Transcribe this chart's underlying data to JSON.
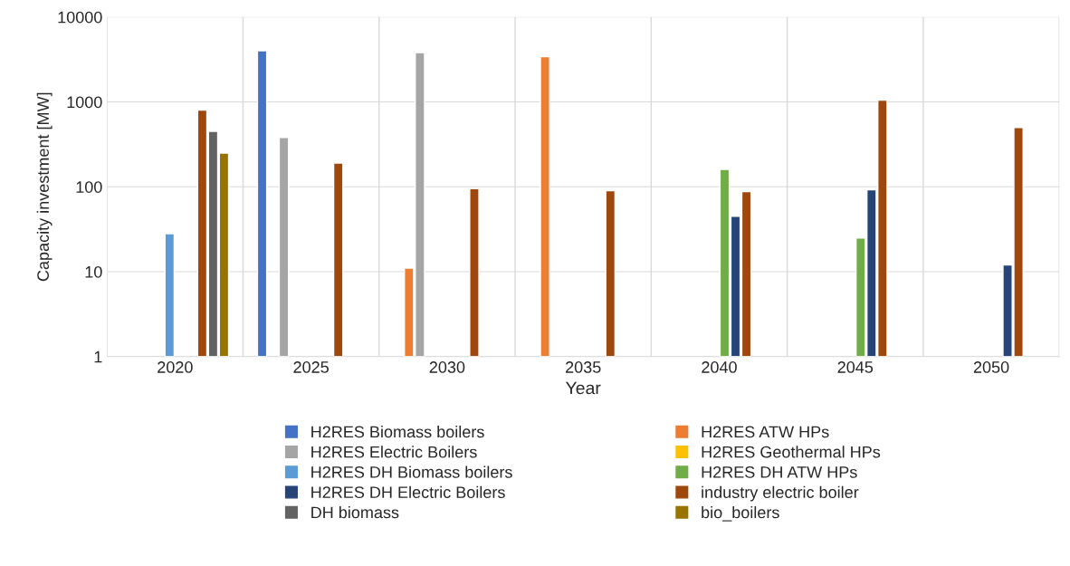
{
  "chart_data": {
    "type": "bar",
    "xlabel": "Year",
    "ylabel": "Capacity investment [MW]",
    "categories": [
      "2020",
      "2025",
      "2030",
      "2035",
      "2040",
      "2045",
      "2050"
    ],
    "log": true,
    "ylim": [
      1,
      10000
    ],
    "yticks": [
      1,
      10,
      100,
      1000,
      10000
    ],
    "grid": true,
    "legend": "bottom",
    "series": [
      {
        "name": "H2RES Biomass boilers",
        "color": "#4472c4",
        "values": [
          null,
          4000,
          null,
          null,
          null,
          null,
          null
        ]
      },
      {
        "name": "H2RES ATW HPs",
        "color": "#ed7d31",
        "values": [
          null,
          null,
          11,
          3400,
          null,
          null,
          null
        ]
      },
      {
        "name": "H2RES Electric Boilers",
        "color": "#a5a5a5",
        "values": [
          null,
          380,
          3800,
          null,
          null,
          null,
          null
        ]
      },
      {
        "name": "H2RES Geothermal HPs",
        "color": "#ffc000",
        "values": [
          null,
          null,
          null,
          null,
          null,
          null,
          null
        ]
      },
      {
        "name": "H2RES DH Biomass boilers",
        "color": "#5b9bd5",
        "values": [
          28,
          null,
          null,
          null,
          null,
          null,
          null
        ]
      },
      {
        "name": "H2RES DH ATW HPs",
        "color": "#70ad47",
        "values": [
          null,
          null,
          null,
          null,
          160,
          25,
          null
        ]
      },
      {
        "name": "H2RES DH Electric Boilers",
        "color": "#264478",
        "values": [
          null,
          null,
          null,
          null,
          45,
          92,
          12
        ]
      },
      {
        "name": "industry electric boiler",
        "color": "#9e480e",
        "values": [
          800,
          190,
          95,
          90,
          88,
          1050,
          500
        ]
      },
      {
        "name": "DH biomass",
        "color": "#636363",
        "values": [
          450,
          null,
          null,
          null,
          null,
          null,
          null
        ]
      },
      {
        "name": "bio_boilers",
        "color": "#997300",
        "values": [
          250,
          null,
          null,
          null,
          null,
          null,
          null
        ]
      }
    ]
  }
}
